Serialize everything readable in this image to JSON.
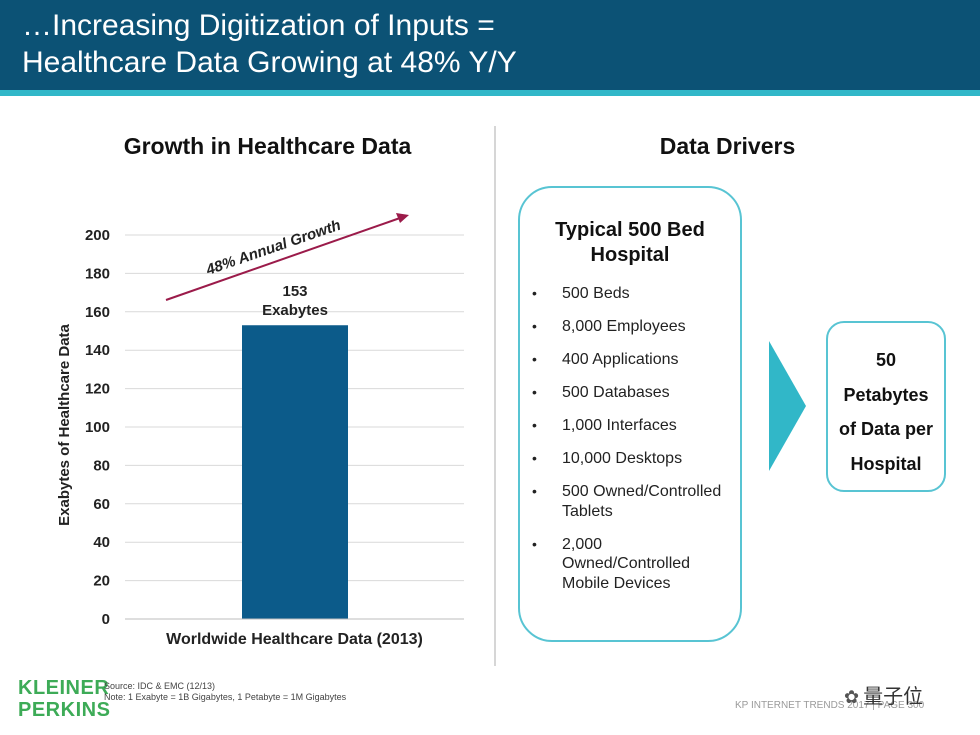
{
  "header": {
    "line1": "…Increasing Digitization of Inputs =",
    "line2": "Healthcare Data Growing at 48% Y/Y"
  },
  "chart_data": {
    "type": "bar",
    "title": "Growth in Healthcare Data",
    "categories": [
      "Worldwide Healthcare Data (2013)"
    ],
    "values": [
      153
    ],
    "xlabel": "Worldwide Healthcare Data (2013)",
    "ylabel": "Exabytes of Healthcare Data",
    "ylim": [
      0,
      200
    ],
    "yticks": [
      0,
      20,
      40,
      60,
      80,
      100,
      120,
      140,
      160,
      180,
      200
    ],
    "grid": true,
    "bar_color": "#0c5b8a",
    "data_label": [
      "153",
      "Exabytes"
    ],
    "annotation": "48% Annual  Growth",
    "annotation_color": "#9b1b4a"
  },
  "drivers": {
    "title": "Data Drivers",
    "box_title_line1": "Typical 500 Bed",
    "box_title_line2": "Hospital",
    "items": [
      [
        "500 Beds"
      ],
      [
        "8,000 Employees"
      ],
      [
        "400 Applications"
      ],
      [
        "500 Databases"
      ],
      [
        "1,000 Interfaces"
      ],
      [
        "10,000 Desktops"
      ],
      [
        "500 Owned/Controlled",
        "Tablets"
      ],
      [
        "2,000",
        "Owned/Controlled",
        "Mobile Devices"
      ]
    ],
    "result_lines": [
      "50",
      "Petabytes",
      "of Data per",
      "Hospital"
    ],
    "accent_color": "#31b7c8"
  },
  "footer": {
    "logo_line1": "KLEINER",
    "logo_line2": "PERKINS",
    "source_line1": "Source: IDC & EMC (12/13)",
    "source_line2": "Note: 1 Exabyte = 1B Gigabytes, 1 Petabyte = 1M Gigabytes",
    "page_label": "KP INTERNET TRENDS 2017  |  PAGE 300",
    "watermark": "量子位",
    "watermark_icon": "wechat-icon"
  }
}
